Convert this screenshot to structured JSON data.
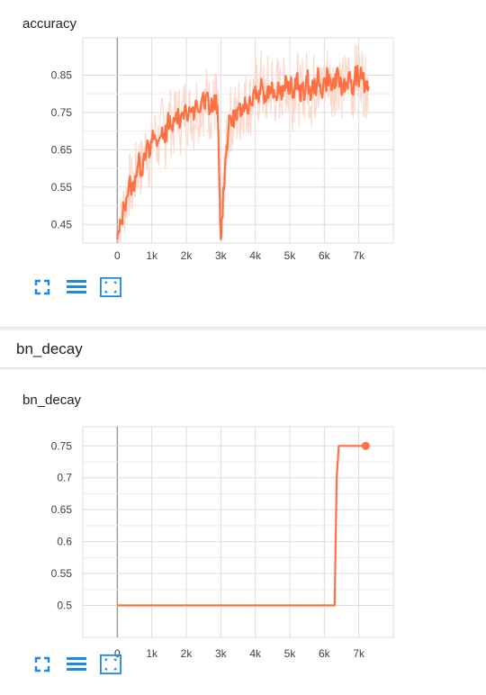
{
  "cards": [
    {
      "title": "accuracy",
      "chart_data": {
        "type": "line",
        "title": "accuracy",
        "x_ticks": [
          "0",
          "1k",
          "2k",
          "3k",
          "4k",
          "5k",
          "6k",
          "7k"
        ],
        "y_ticks": [
          "0.45",
          "0.55",
          "0.65",
          "0.75",
          "0.85"
        ],
        "xlim": [
          -1000,
          8000
        ],
        "ylim": [
          0.4,
          0.95
        ],
        "grid": true,
        "series": [
          {
            "color": "#ff7043",
            "raw_color": "#fcd9cc",
            "smoothed": [
              [
                0,
                0.41
              ],
              [
                60,
                0.43
              ],
              [
                120,
                0.46
              ],
              [
                200,
                0.5
              ],
              [
                260,
                0.52
              ],
              [
                330,
                0.55
              ],
              [
                380,
                0.56
              ],
              [
                450,
                0.54
              ],
              [
                520,
                0.58
              ],
              [
                580,
                0.6
              ],
              [
                650,
                0.62
              ],
              [
                700,
                0.59
              ],
              [
                780,
                0.64
              ],
              [
                850,
                0.66
              ],
              [
                930,
                0.63
              ],
              [
                1000,
                0.67
              ],
              [
                1080,
                0.69
              ],
              [
                1150,
                0.66
              ],
              [
                1220,
                0.68
              ],
              [
                1300,
                0.71
              ],
              [
                1380,
                0.67
              ],
              [
                1450,
                0.72
              ],
              [
                1520,
                0.74
              ],
              [
                1600,
                0.7
              ],
              [
                1680,
                0.73
              ],
              [
                1760,
                0.76
              ],
              [
                1830,
                0.72
              ],
              [
                1900,
                0.75
              ],
              [
                1980,
                0.77
              ],
              [
                2060,
                0.74
              ],
              [
                2140,
                0.76
              ],
              [
                2220,
                0.73
              ],
              [
                2300,
                0.78
              ],
              [
                2380,
                0.75
              ],
              [
                2460,
                0.79
              ],
              [
                2540,
                0.76
              ],
              [
                2600,
                0.8
              ],
              [
                2650,
                0.77
              ],
              [
                2700,
                0.75
              ],
              [
                2750,
                0.78
              ],
              [
                2800,
                0.76
              ],
              [
                2850,
                0.79
              ],
              [
                2900,
                0.77
              ],
              [
                2950,
                0.6
              ],
              [
                2980,
                0.45
              ],
              [
                3000,
                0.41
              ],
              [
                3040,
                0.47
              ],
              [
                3080,
                0.55
              ],
              [
                3120,
                0.6
              ],
              [
                3170,
                0.66
              ],
              [
                3220,
                0.7
              ],
              [
                3280,
                0.74
              ],
              [
                3340,
                0.72
              ],
              [
                3400,
                0.75
              ],
              [
                3460,
                0.73
              ],
              [
                3520,
                0.76
              ],
              [
                3580,
                0.74
              ],
              [
                3640,
                0.77
              ],
              [
                3700,
                0.79
              ],
              [
                3760,
                0.76
              ],
              [
                3820,
                0.78
              ],
              [
                3880,
                0.77
              ],
              [
                3940,
                0.8
              ],
              [
                4000,
                0.82
              ],
              [
                4060,
                0.79
              ],
              [
                4120,
                0.81
              ],
              [
                4180,
                0.84
              ],
              [
                4240,
                0.8
              ],
              [
                4300,
                0.78
              ],
              [
                4360,
                0.82
              ],
              [
                4420,
                0.8
              ],
              [
                4480,
                0.83
              ],
              [
                4540,
                0.81
              ],
              [
                4600,
                0.79
              ],
              [
                4660,
                0.83
              ],
              [
                4720,
                0.8
              ],
              [
                4780,
                0.82
              ],
              [
                4840,
                0.81
              ],
              [
                4900,
                0.84
              ],
              [
                4960,
                0.8
              ],
              [
                5020,
                0.83
              ],
              [
                5080,
                0.79
              ],
              [
                5140,
                0.82
              ],
              [
                5200,
                0.85
              ],
              [
                5260,
                0.81
              ],
              [
                5320,
                0.78
              ],
              [
                5380,
                0.83
              ],
              [
                5440,
                0.8
              ],
              [
                5500,
                0.84
              ],
              [
                5560,
                0.82
              ],
              [
                5620,
                0.79
              ],
              [
                5680,
                0.83
              ],
              [
                5740,
                0.81
              ],
              [
                5800,
                0.85
              ],
              [
                5860,
                0.82
              ],
              [
                5920,
                0.8
              ],
              [
                5980,
                0.84
              ],
              [
                6040,
                0.82
              ],
              [
                6100,
                0.86
              ],
              [
                6160,
                0.83
              ],
              [
                6220,
                0.81
              ],
              [
                6280,
                0.84
              ],
              [
                6340,
                0.82
              ],
              [
                6400,
                0.86
              ],
              [
                6460,
                0.83
              ],
              [
                6520,
                0.8
              ],
              [
                6580,
                0.84
              ],
              [
                6640,
                0.82
              ],
              [
                6700,
                0.85
              ],
              [
                6760,
                0.83
              ],
              [
                6820,
                0.8
              ],
              [
                6880,
                0.84
              ],
              [
                6940,
                0.86
              ],
              [
                7000,
                0.82
              ],
              [
                7060,
                0.87
              ],
              [
                7120,
                0.84
              ],
              [
                7180,
                0.81
              ],
              [
                7230,
                0.83
              ],
              [
                7280,
                0.82
              ]
            ]
          }
        ]
      }
    },
    {
      "title": "bn_decay",
      "chart_data": {
        "type": "line",
        "title": "bn_decay",
        "x_ticks": [
          "0",
          "1k",
          "2k",
          "3k",
          "4k",
          "5k",
          "6k",
          "7k"
        ],
        "y_ticks": [
          "0.5",
          "0.55",
          "0.6",
          "0.65",
          "0.7",
          "0.75"
        ],
        "xlim": [
          -1000,
          8000
        ],
        "ylim": [
          0.45,
          0.78
        ],
        "grid": true,
        "series": [
          {
            "color": "#ff7043",
            "smoothed": [
              [
                0,
                0.5
              ],
              [
                6300,
                0.5
              ],
              [
                6360,
                0.7
              ],
              [
                6420,
                0.75
              ],
              [
                7200,
                0.75
              ]
            ],
            "endpoint_marker": true
          }
        ]
      }
    }
  ],
  "section": {
    "title": "bn_decay"
  },
  "toolbar": {
    "icons": [
      "fullscreen-icon",
      "list-icon",
      "fit-domain-icon"
    ],
    "color": "#1e88e5"
  }
}
